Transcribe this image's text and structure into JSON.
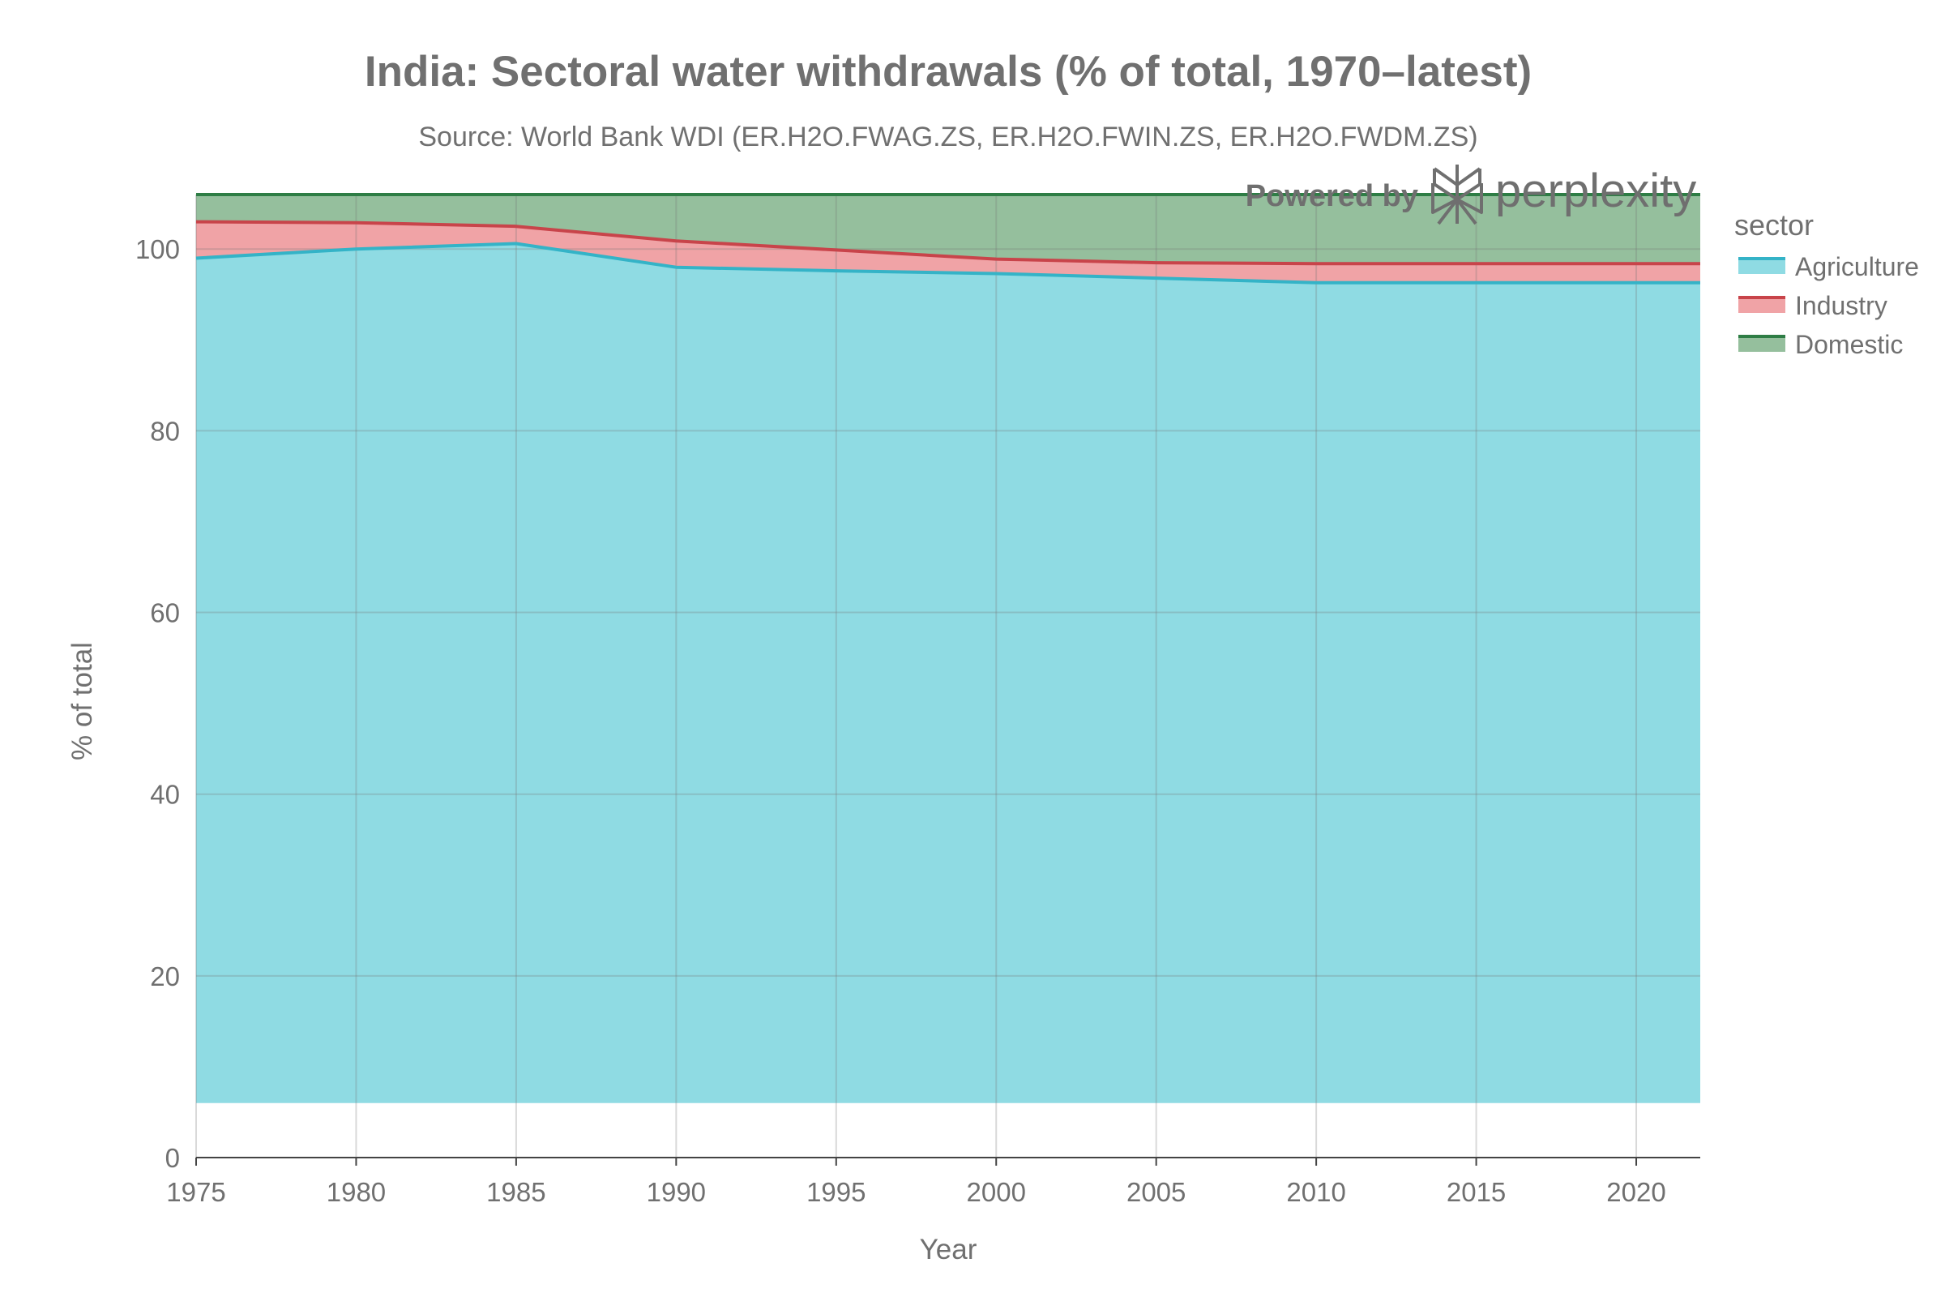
{
  "title": "India: Sectoral water withdrawals (% of total, 1970–latest)",
  "subtitle": "Source: World Bank WDI (ER.H2O.FWAG.ZS, ER.H2O.FWIN.ZS, ER.H2O.FWDM.ZS)",
  "watermark": {
    "powered_by": "Powered by",
    "brand": "perplexity"
  },
  "colors": {
    "agriculture_fill": "#8fdbe3",
    "agriculture_line": "#34b3c7",
    "industry_fill": "#f0a3a6",
    "industry_line": "#c8444a",
    "domestic_fill": "#95bf9d",
    "domestic_line": "#2e7d45",
    "grid": "#d9d9d9",
    "axis": "#444444",
    "text": "#707070"
  },
  "chart_data": {
    "type": "area",
    "stacked": true,
    "xlabel": "Year",
    "ylabel": "% of total",
    "xlim": [
      1975,
      2022
    ],
    "ylim": [
      0,
      106
    ],
    "area_baseline": 6,
    "x_ticks": [
      1975,
      1980,
      1985,
      1990,
      1995,
      2000,
      2005,
      2010,
      2015,
      2020
    ],
    "y_ticks": [
      0,
      20,
      40,
      60,
      80,
      100
    ],
    "grid": true,
    "legend": {
      "title": "sector",
      "position": "top-right"
    },
    "x": [
      1975,
      1980,
      1985,
      1990,
      1995,
      2000,
      2005,
      2010,
      2015,
      2022
    ],
    "series": [
      {
        "name": "Agriculture",
        "values": [
          93,
          94,
          94.6,
          92,
          91.6,
          91.3,
          90.8,
          90.3,
          90.3,
          90.3
        ]
      },
      {
        "name": "Industry",
        "values": [
          4,
          2.9,
          1.9,
          2.9,
          2.3,
          1.6,
          1.7,
          2.1,
          2.1,
          2.1
        ]
      },
      {
        "name": "Domestic",
        "values": [
          3,
          3.1,
          3.5,
          5.1,
          6.1,
          7.1,
          7.5,
          7.6,
          7.6,
          7.6
        ]
      }
    ]
  }
}
